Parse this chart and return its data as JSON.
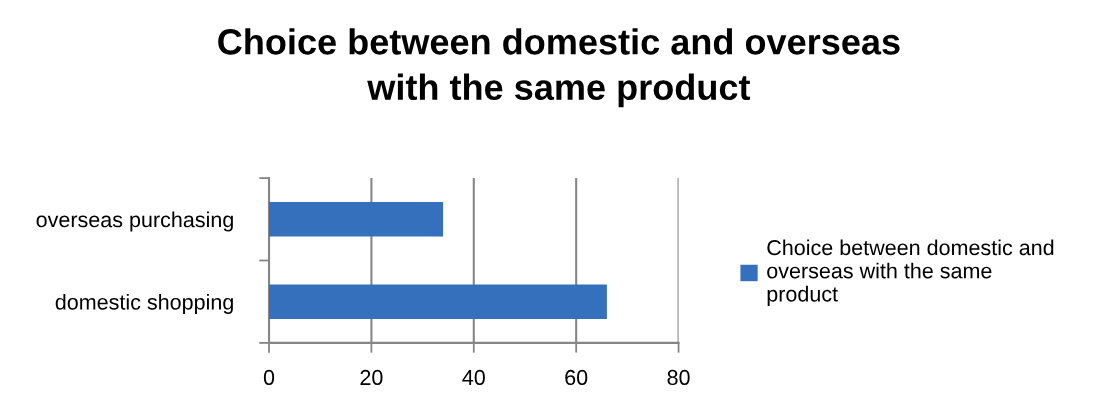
{
  "chart_data": {
    "type": "bar",
    "orientation": "horizontal",
    "title": "Choice between domestic and overseas\nwith the same product",
    "categories": [
      "overseas purchasing",
      "domestic shopping"
    ],
    "series": [
      {
        "name": "Choice between domestic and\noverseas with the same\nproduct",
        "color": "#3470bc",
        "values": [
          34,
          66
        ]
      }
    ],
    "xlim": [
      0,
      80
    ],
    "xticks": [
      0,
      20,
      40,
      60,
      80
    ],
    "grid": "x",
    "legend": "right"
  }
}
